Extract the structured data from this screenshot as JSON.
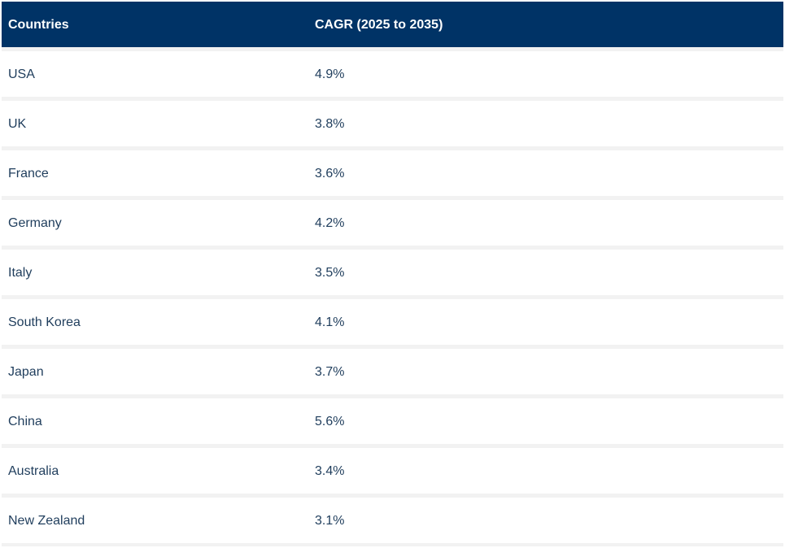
{
  "table": {
    "headers": {
      "country": "Countries",
      "cagr": "CAGR (2025 to 2035)"
    },
    "rows": [
      {
        "country": "USA",
        "cagr": "4.9%"
      },
      {
        "country": "UK",
        "cagr": "3.8%"
      },
      {
        "country": "France",
        "cagr": "3.6%"
      },
      {
        "country": "Germany",
        "cagr": "4.2%"
      },
      {
        "country": "Italy",
        "cagr": "3.5%"
      },
      {
        "country": "South Korea",
        "cagr": "4.1%"
      },
      {
        "country": "Japan",
        "cagr": "3.7%"
      },
      {
        "country": "China",
        "cagr": "5.6%"
      },
      {
        "country": "Australia",
        "cagr": "3.4%"
      },
      {
        "country": "New Zealand",
        "cagr": "3.1%"
      }
    ]
  },
  "colors": {
    "header_bg": "#003366",
    "header_text": "#ffffff",
    "row_bg": "#ffffff",
    "row_separator": "#f2f2f2",
    "cell_text": "#1f3d5c"
  }
}
